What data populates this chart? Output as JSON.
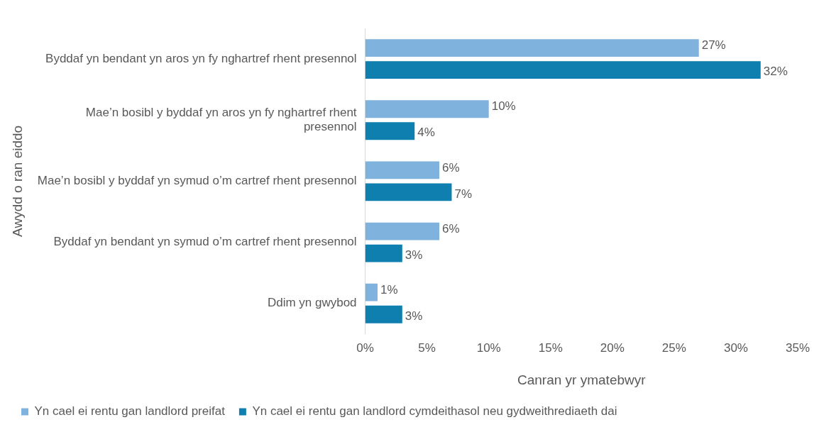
{
  "chart_data": {
    "type": "bar",
    "orientation": "horizontal",
    "xlabel": "Canran yr ymatebwyr",
    "ylabel": "Awydd o ran eiddo",
    "categories": [
      "Byddaf yn bendant yn aros yn fy nghartref rhent presennol",
      "Mae’n bosibl y byddaf yn aros yn fy nghartref rhent presennol",
      "Mae’n bosibl y byddaf yn symud o’m cartref rhent presennol",
      "Byddaf yn bendant yn symud o’m cartref rhent presennol",
      "Ddim yn gwybod"
    ],
    "series": [
      {
        "name": "Yn cael ei rentu gan landlord preifat",
        "color": "#7fb3dd",
        "values": [
          27,
          10,
          6,
          6,
          1
        ],
        "value_labels": [
          "27%",
          "10%",
          "6%",
          "6%",
          "1%"
        ]
      },
      {
        "name": "Yn cael ei rentu gan landlord cymdeithasol neu gydweithrediaeth dai",
        "color": "#0f7fb0",
        "values": [
          32,
          4,
          7,
          3,
          3
        ],
        "value_labels": [
          "32%",
          "4%",
          "7%",
          "3%",
          "3%"
        ]
      }
    ],
    "xlim": [
      0,
      35
    ],
    "xticks": [
      {
        "value": 0,
        "label": "0%"
      },
      {
        "value": 5,
        "label": "5%"
      },
      {
        "value": 10,
        "label": "10%"
      },
      {
        "value": 15,
        "label": "15%"
      },
      {
        "value": 20,
        "label": "20%"
      },
      {
        "value": 25,
        "label": "25%"
      },
      {
        "value": 30,
        "label": "30%"
      },
      {
        "value": 35,
        "label": "35%"
      }
    ],
    "grid": false,
    "legend": "bottom"
  }
}
